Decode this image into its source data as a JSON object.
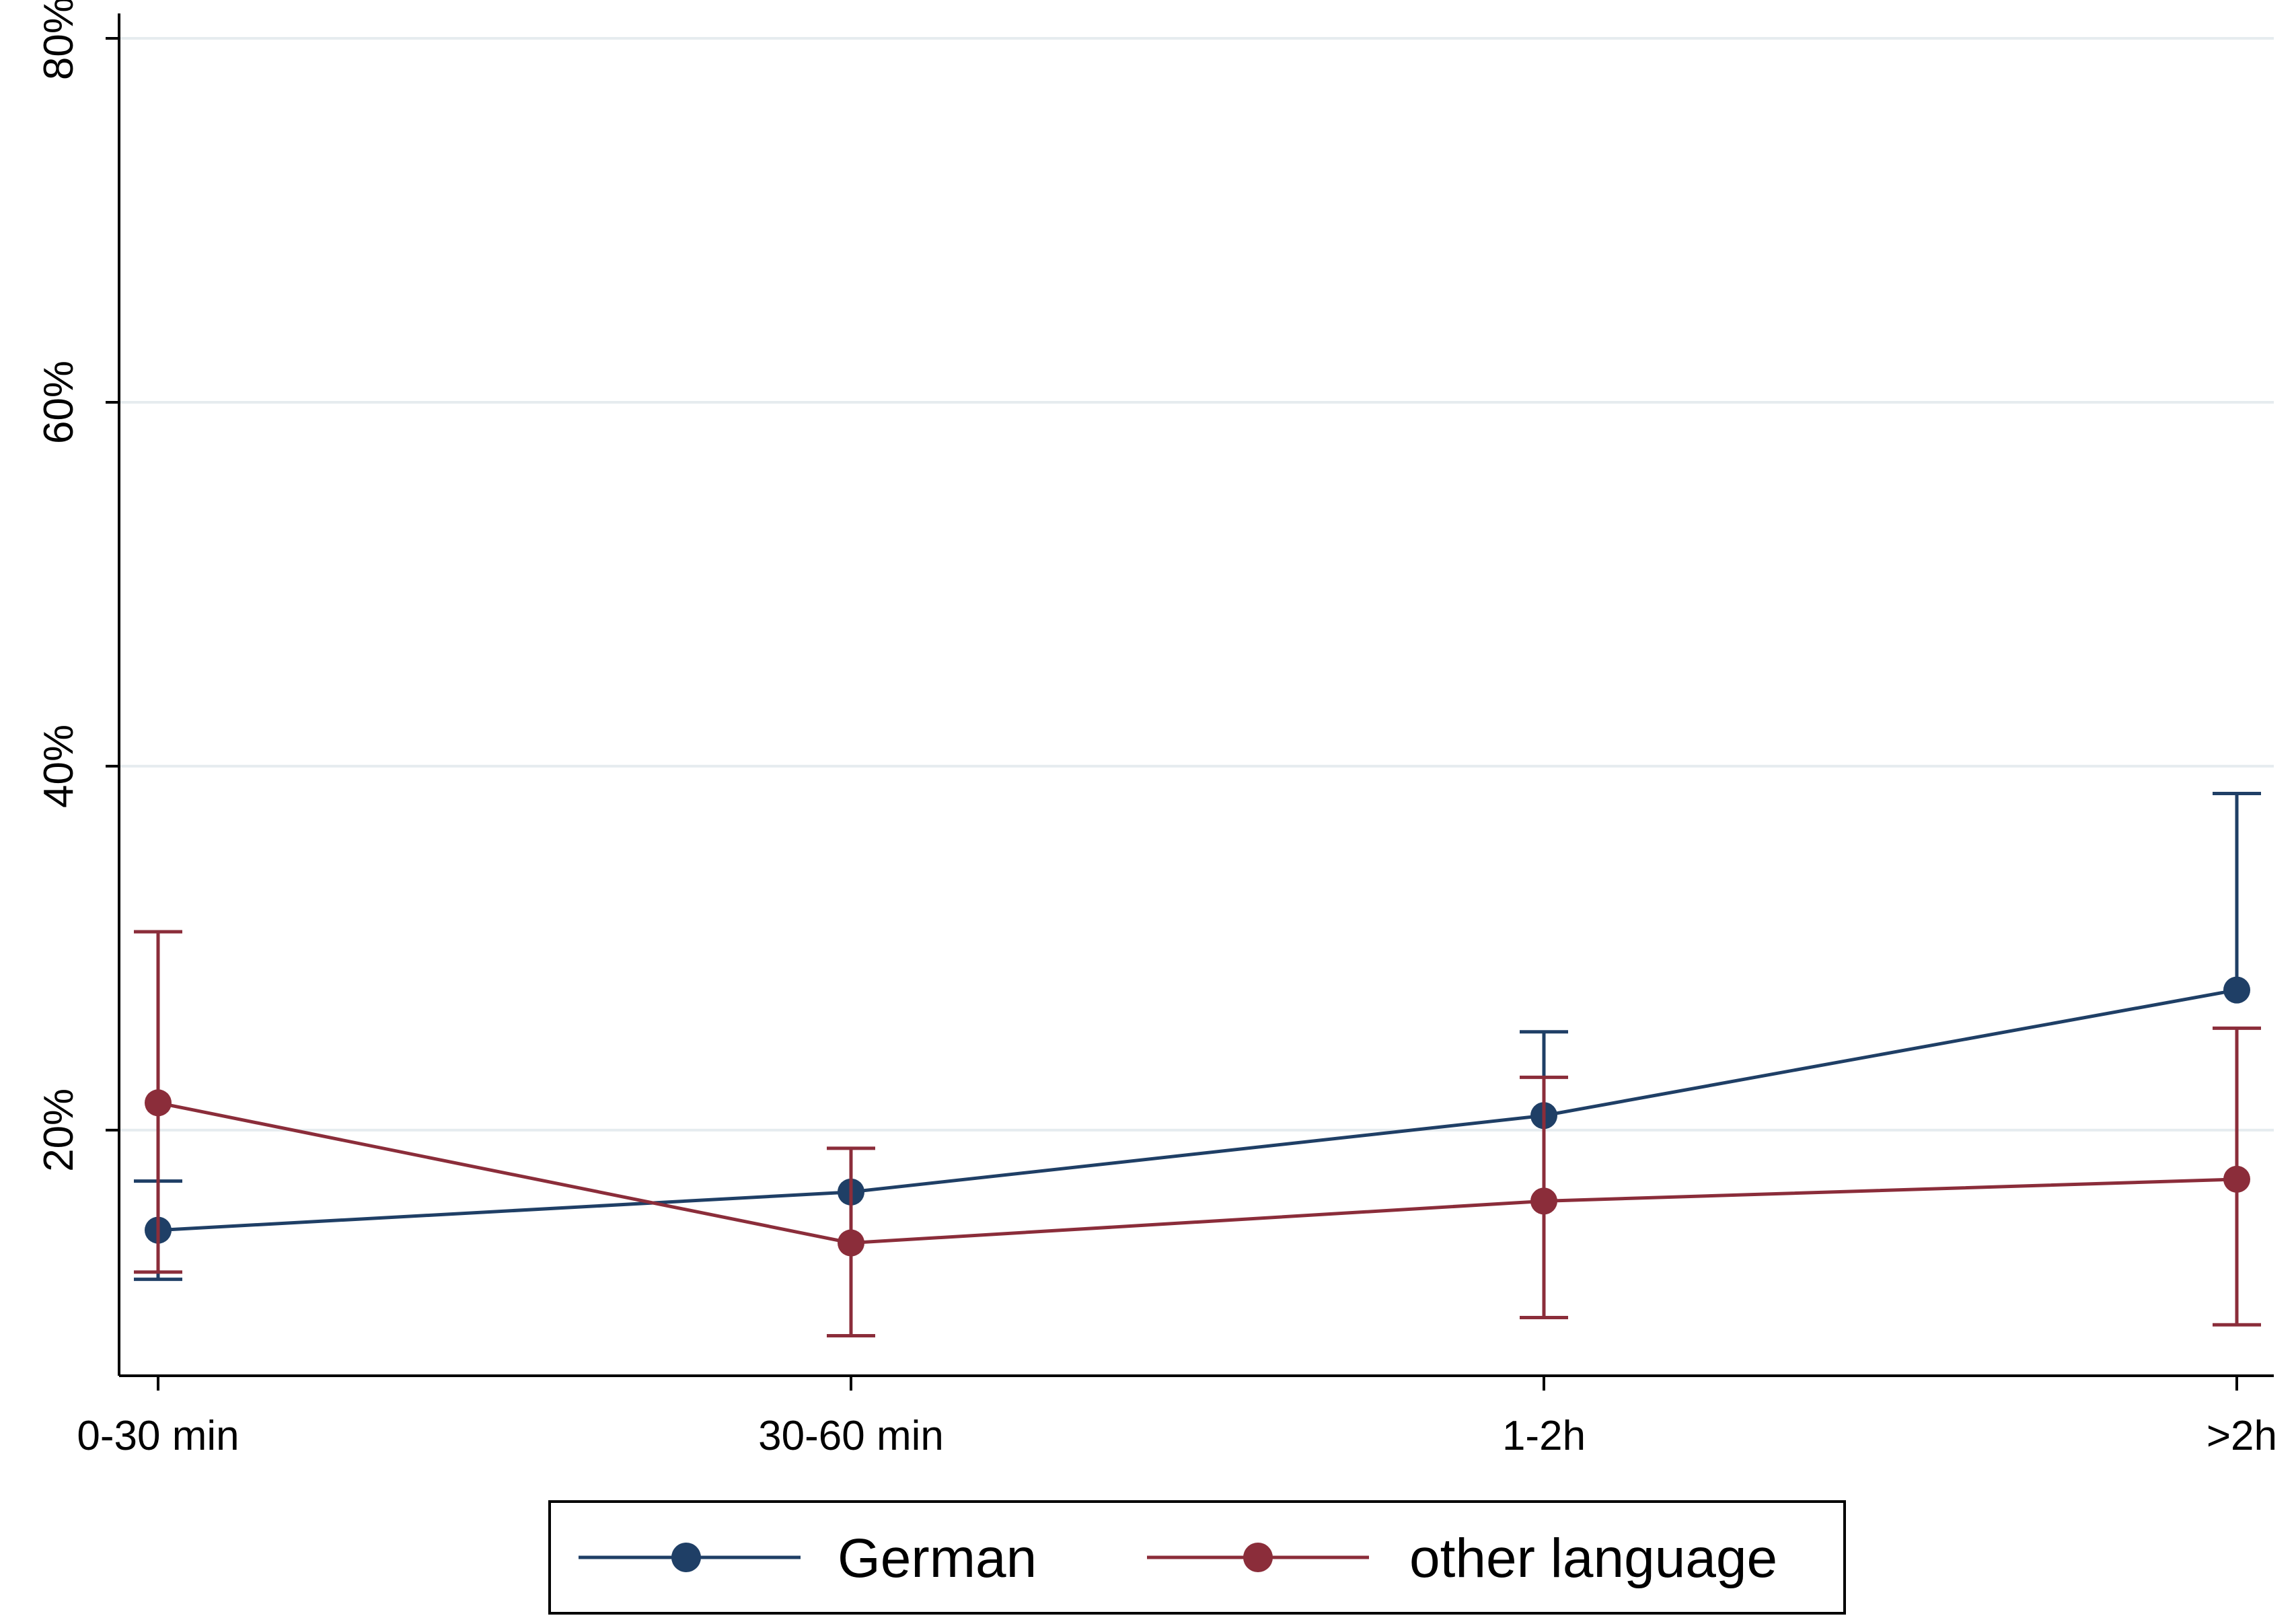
{
  "chart_data": {
    "type": "line",
    "title": "",
    "xlabel": "",
    "ylabel": "",
    "categories": [
      "0-30 min",
      "30-60 min",
      "1-2h",
      ">2h"
    ],
    "ylim": [
      6.5,
      81
    ],
    "yticks": [
      20,
      40,
      60,
      80
    ],
    "ytick_labels": [
      "20%",
      "40%",
      "60%",
      "80%"
    ],
    "grid": true,
    "legend_position": "bottom",
    "series": [
      {
        "name": "German",
        "color": "#1f3f66",
        "values": [
          14.5,
          16.6,
          20.8,
          27.7
        ],
        "ci_low": [
          11.8,
          null,
          null,
          null
        ],
        "ci_high": [
          17.2,
          null,
          25.4,
          38.5
        ]
      },
      {
        "name": "other language",
        "color": "#8b2d3a",
        "values": [
          21.5,
          13.8,
          16.1,
          17.3
        ],
        "ci_low": [
          12.2,
          8.7,
          9.7,
          9.3
        ],
        "ci_high": [
          30.9,
          19.0,
          22.9,
          25.6
        ]
      }
    ]
  }
}
